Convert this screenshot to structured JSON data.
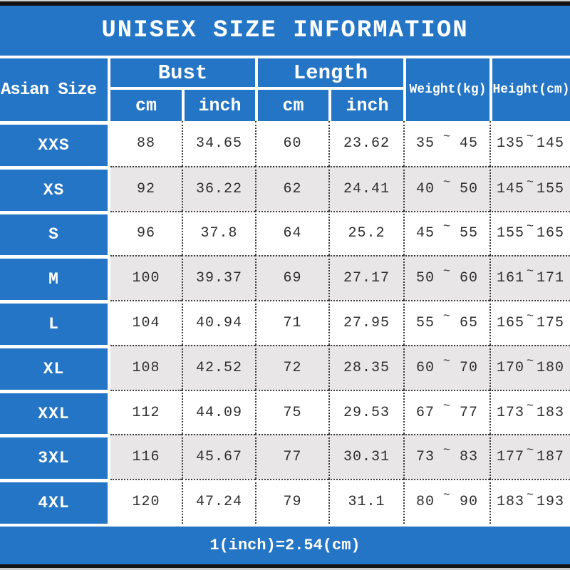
{
  "title": "UNISEX SIZE INFORMATION",
  "footer_note": "1(inch)=2.54(cm)",
  "header": {
    "corner": "Asian Size",
    "bust": "Bust",
    "length": "Length",
    "weight": "Weight(kg)",
    "height": "Height(cm)",
    "unit_cm": "cm",
    "unit_inch": "inch",
    "range_separator": "~"
  },
  "rows": [
    {
      "size": "XXS",
      "bust_cm": "88",
      "bust_inch": "34.65",
      "length_cm": "60",
      "length_inch": "23.62",
      "weight_min": "35",
      "weight_max": "45",
      "height_min": "135",
      "height_max": "145"
    },
    {
      "size": "XS",
      "bust_cm": "92",
      "bust_inch": "36.22",
      "length_cm": "62",
      "length_inch": "24.41",
      "weight_min": "40",
      "weight_max": "50",
      "height_min": "145",
      "height_max": "155"
    },
    {
      "size": "S",
      "bust_cm": "96",
      "bust_inch": "37.8",
      "length_cm": "64",
      "length_inch": "25.2",
      "weight_min": "45",
      "weight_max": "55",
      "height_min": "155",
      "height_max": "165"
    },
    {
      "size": "M",
      "bust_cm": "100",
      "bust_inch": "39.37",
      "length_cm": "69",
      "length_inch": "27.17",
      "weight_min": "50",
      "weight_max": "60",
      "height_min": "161",
      "height_max": "171"
    },
    {
      "size": "L",
      "bust_cm": "104",
      "bust_inch": "40.94",
      "length_cm": "71",
      "length_inch": "27.95",
      "weight_min": "55",
      "weight_max": "65",
      "height_min": "165",
      "height_max": "175"
    },
    {
      "size": "XL",
      "bust_cm": "108",
      "bust_inch": "42.52",
      "length_cm": "72",
      "length_inch": "28.35",
      "weight_min": "60",
      "weight_max": "70",
      "height_min": "170",
      "height_max": "180"
    },
    {
      "size": "XXL",
      "bust_cm": "112",
      "bust_inch": "44.09",
      "length_cm": "75",
      "length_inch": "29.53",
      "weight_min": "67",
      "weight_max": "77",
      "height_min": "173",
      "height_max": "183"
    },
    {
      "size": "3XL",
      "bust_cm": "116",
      "bust_inch": "45.67",
      "length_cm": "77",
      "length_inch": "30.31",
      "weight_min": "73",
      "weight_max": "83",
      "height_min": "177",
      "height_max": "187"
    },
    {
      "size": "4XL",
      "bust_cm": "120",
      "bust_inch": "47.24",
      "length_cm": "79",
      "length_inch": "31.1",
      "weight_min": "80",
      "weight_max": "90",
      "height_min": "183",
      "height_max": "193"
    }
  ],
  "chart_data": {
    "type": "table",
    "title": "UNISEX SIZE INFORMATION",
    "columns": [
      "Asian Size",
      "Bust cm",
      "Bust inch",
      "Length cm",
      "Length inch",
      "Weight(kg)",
      "Height(cm)"
    ],
    "rows": [
      [
        "XXS",
        "88",
        "34.65",
        "60",
        "23.62",
        "35 ~ 45",
        "135 ~ 145"
      ],
      [
        "XS",
        "92",
        "36.22",
        "62",
        "24.41",
        "40 ~ 50",
        "145 ~ 155"
      ],
      [
        "S",
        "96",
        "37.8",
        "64",
        "25.2",
        "45 ~ 55",
        "155 ~ 165"
      ],
      [
        "M",
        "100",
        "39.37",
        "69",
        "27.17",
        "50 ~ 60",
        "161 ~ 171"
      ],
      [
        "L",
        "104",
        "40.94",
        "71",
        "27.95",
        "55 ~ 65",
        "165 ~ 175"
      ],
      [
        "XL",
        "108",
        "42.52",
        "72",
        "28.35",
        "60 ~ 70",
        "170 ~ 180"
      ],
      [
        "XXL",
        "112",
        "44.09",
        "75",
        "29.53",
        "67 ~ 77",
        "173 ~ 183"
      ],
      [
        "3XL",
        "116",
        "45.67",
        "77",
        "30.31",
        "73 ~ 83",
        "177 ~ 187"
      ],
      [
        "4XL",
        "120",
        "47.24",
        "79",
        "31.1",
        "80 ~ 90",
        "183 ~ 193"
      ]
    ],
    "note": "1(inch)=2.54(cm)"
  },
  "colors": {
    "accent_blue": "#2475c5",
    "alt_row_gray": "#e8e6e7",
    "data_text": "#2f2f2f",
    "dotted_border": "#3c3c3c"
  }
}
